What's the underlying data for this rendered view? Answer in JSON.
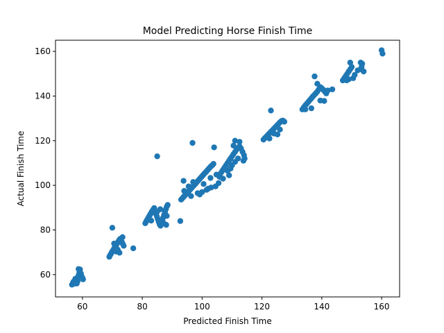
{
  "chart_data": {
    "type": "scatter",
    "title": "Model Predicting Horse Finish Time",
    "xlabel": "Predicted Finish Time",
    "ylabel": "Actual Finish Time",
    "xlim": [
      51,
      166
    ],
    "ylim": [
      50,
      165
    ],
    "xticks": [
      60,
      80,
      100,
      120,
      140,
      160
    ],
    "yticks": [
      60,
      80,
      100,
      120,
      140,
      160
    ],
    "grid": false,
    "marker_color": "#1f77b4",
    "points": [
      [
        56.5,
        55.5
      ],
      [
        56.8,
        56.2
      ],
      [
        57.0,
        56.8
      ],
      [
        57.2,
        55.9
      ],
      [
        57.5,
        57.3
      ],
      [
        57.8,
        56.5
      ],
      [
        58.0,
        57.8
      ],
      [
        58.2,
        58.5
      ],
      [
        58.4,
        57.1
      ],
      [
        58.6,
        59.2
      ],
      [
        58.8,
        60.0
      ],
      [
        59.0,
        61.0
      ],
      [
        59.2,
        62.3
      ],
      [
        58.7,
        62.5
      ],
      [
        59.5,
        60.5
      ],
      [
        59.7,
        59.3
      ],
      [
        60.0,
        58.6
      ],
      [
        60.2,
        57.9
      ],
      [
        58.1,
        56.0
      ],
      [
        57.6,
        58.1
      ],
      [
        69.0,
        68.0
      ],
      [
        69.3,
        68.8
      ],
      [
        69.6,
        69.5
      ],
      [
        69.9,
        70.2
      ],
      [
        70.2,
        70.8
      ],
      [
        70.5,
        71.5
      ],
      [
        70.8,
        72.2
      ],
      [
        71.1,
        72.8
      ],
      [
        71.4,
        73.5
      ],
      [
        71.7,
        74.2
      ],
      [
        72.0,
        74.8
      ],
      [
        72.3,
        75.5
      ],
      [
        72.6,
        76.0
      ],
      [
        72.9,
        75.2
      ],
      [
        73.2,
        74.6
      ],
      [
        73.5,
        73.8
      ],
      [
        73.8,
        72.9
      ],
      [
        70.6,
        73.9
      ],
      [
        71.3,
        70.3
      ],
      [
        72.4,
        69.8
      ],
      [
        70.0,
        81.0
      ],
      [
        73.4,
        76.8
      ],
      [
        71.8,
        71.2
      ],
      [
        77.0,
        71.8
      ],
      [
        81.0,
        83.0
      ],
      [
        81.3,
        83.8
      ],
      [
        81.6,
        84.5
      ],
      [
        81.9,
        85.2
      ],
      [
        82.2,
        85.9
      ],
      [
        82.5,
        86.6
      ],
      [
        82.8,
        87.3
      ],
      [
        83.1,
        88.0
      ],
      [
        83.4,
        88.6
      ],
      [
        83.7,
        89.2
      ],
      [
        84.0,
        89.8
      ],
      [
        84.3,
        88.5
      ],
      [
        84.6,
        87.2
      ],
      [
        84.9,
        86.0
      ],
      [
        85.2,
        84.8
      ],
      [
        85.5,
        83.6
      ],
      [
        85.8,
        82.5
      ],
      [
        86.1,
        81.9
      ],
      [
        86.4,
        83.1
      ],
      [
        86.7,
        84.4
      ],
      [
        87.0,
        85.6
      ],
      [
        87.3,
        86.9
      ],
      [
        87.6,
        88.1
      ],
      [
        87.9,
        89.4
      ],
      [
        88.2,
        90.5
      ],
      [
        88.5,
        91.2
      ],
      [
        88.2,
        86.3
      ],
      [
        87.2,
        83.0
      ],
      [
        85.0,
        88.2
      ],
      [
        83.0,
        84.2
      ],
      [
        85.0,
        113.0
      ],
      [
        92.7,
        84.0
      ],
      [
        88.0,
        82.3
      ],
      [
        86.0,
        89.3
      ],
      [
        93.0,
        93.6
      ],
      [
        93.4,
        94.2
      ],
      [
        93.8,
        94.8
      ],
      [
        94.2,
        95.4
      ],
      [
        94.6,
        96.0
      ],
      [
        95.0,
        96.6
      ],
      [
        95.4,
        97.2
      ],
      [
        95.8,
        97.8
      ],
      [
        96.2,
        98.4
      ],
      [
        96.6,
        99.0
      ],
      [
        97.0,
        99.6
      ],
      [
        97.4,
        100.2
      ],
      [
        97.8,
        100.8
      ],
      [
        98.2,
        101.4
      ],
      [
        98.6,
        102.0
      ],
      [
        99.0,
        102.6
      ],
      [
        99.4,
        103.2
      ],
      [
        99.8,
        103.8
      ],
      [
        100.2,
        104.4
      ],
      [
        100.6,
        105.0
      ],
      [
        101.0,
        105.6
      ],
      [
        101.4,
        106.2
      ],
      [
        101.8,
        106.8
      ],
      [
        102.2,
        107.4
      ],
      [
        102.6,
        108.0
      ],
      [
        103.0,
        108.6
      ],
      [
        103.4,
        109.0
      ],
      [
        103.8,
        109.6
      ],
      [
        94.0,
        97.5
      ],
      [
        95.5,
        99.5
      ],
      [
        97.0,
        101.5
      ],
      [
        98.5,
        96.5
      ],
      [
        100.0,
        97.0
      ],
      [
        101.5,
        98.0
      ],
      [
        103.0,
        99.0
      ],
      [
        104.5,
        99.5
      ],
      [
        105.5,
        101.0
      ],
      [
        93.8,
        102.0
      ],
      [
        96.8,
        119.0
      ],
      [
        104.0,
        117.0
      ],
      [
        102.0,
        98.5
      ],
      [
        99.2,
        95.9
      ],
      [
        96.3,
        95.2
      ],
      [
        100.5,
        100.6
      ],
      [
        102.8,
        103.3
      ],
      [
        104.8,
        104.8
      ],
      [
        106.0,
        105.0
      ],
      [
        106.5,
        106.0
      ],
      [
        107.0,
        107.0
      ],
      [
        107.5,
        108.0
      ],
      [
        108.0,
        109.0
      ],
      [
        108.5,
        110.0
      ],
      [
        109.0,
        111.0
      ],
      [
        109.5,
        112.0
      ],
      [
        110.0,
        113.0
      ],
      [
        110.5,
        114.0
      ],
      [
        111.0,
        115.0
      ],
      [
        111.5,
        116.0
      ],
      [
        112.0,
        116.8
      ],
      [
        112.5,
        117.5
      ],
      [
        113.0,
        116.5
      ],
      [
        113.5,
        115.0
      ],
      [
        114.0,
        113.5
      ],
      [
        110.0,
        109.0
      ],
      [
        111.0,
        110.5
      ],
      [
        112.0,
        112.0
      ],
      [
        108.5,
        106.5
      ],
      [
        109.5,
        107.5
      ],
      [
        114.2,
        112.0
      ],
      [
        107.0,
        103.0
      ],
      [
        109.0,
        104.5
      ],
      [
        111.0,
        120.0
      ],
      [
        112.5,
        119.5
      ],
      [
        113.8,
        111.0
      ],
      [
        105.8,
        103.8
      ],
      [
        110.5,
        117.8
      ],
      [
        120.5,
        120.5
      ],
      [
        121.0,
        121.2
      ],
      [
        121.5,
        121.9
      ],
      [
        122.0,
        122.6
      ],
      [
        122.5,
        123.3
      ],
      [
        123.0,
        124.0
      ],
      [
        123.5,
        124.7
      ],
      [
        124.0,
        125.4
      ],
      [
        124.5,
        126.1
      ],
      [
        125.0,
        126.8
      ],
      [
        125.5,
        127.5
      ],
      [
        126.0,
        128.2
      ],
      [
        126.5,
        128.8
      ],
      [
        127.0,
        129.0
      ],
      [
        127.5,
        128.5
      ],
      [
        123.0,
        133.5
      ],
      [
        122.5,
        121.0
      ],
      [
        124.0,
        123.2
      ],
      [
        126.0,
        125.0
      ],
      [
        125.2,
        122.8
      ],
      [
        133.5,
        134.0
      ],
      [
        134.0,
        135.0
      ],
      [
        134.5,
        135.8
      ],
      [
        135.0,
        136.6
      ],
      [
        135.5,
        137.4
      ],
      [
        136.0,
        138.2
      ],
      [
        136.5,
        139.0
      ],
      [
        137.0,
        139.8
      ],
      [
        137.5,
        140.5
      ],
      [
        138.0,
        141.2
      ],
      [
        138.5,
        142.0
      ],
      [
        139.0,
        143.0
      ],
      [
        139.5,
        144.0
      ],
      [
        140.0,
        143.5
      ],
      [
        140.5,
        142.8
      ],
      [
        141.0,
        142.0
      ],
      [
        141.5,
        141.2
      ],
      [
        142.0,
        142.5
      ],
      [
        143.5,
        143.0
      ],
      [
        137.6,
        148.8
      ],
      [
        138.5,
        145.5
      ],
      [
        139.5,
        138.0
      ],
      [
        134.5,
        134.0
      ],
      [
        140.8,
        137.8
      ],
      [
        136.5,
        134.5
      ],
      [
        147.0,
        147.0
      ],
      [
        147.5,
        148.0
      ],
      [
        148.0,
        149.0
      ],
      [
        148.5,
        150.0
      ],
      [
        149.0,
        151.0
      ],
      [
        149.5,
        152.0
      ],
      [
        150.0,
        153.0
      ],
      [
        149.5,
        155.0
      ],
      [
        149.0,
        147.5
      ],
      [
        150.5,
        148.0
      ],
      [
        153.0,
        155.0
      ],
      [
        153.5,
        154.5
      ],
      [
        154.0,
        151.0
      ],
      [
        152.0,
        151.5
      ],
      [
        153.0,
        152.0
      ],
      [
        160.0,
        160.5
      ],
      [
        160.3,
        159.0
      ],
      [
        148.3,
        147.0
      ],
      [
        151.0,
        149.5
      ],
      [
        153.3,
        153.0
      ]
    ]
  }
}
